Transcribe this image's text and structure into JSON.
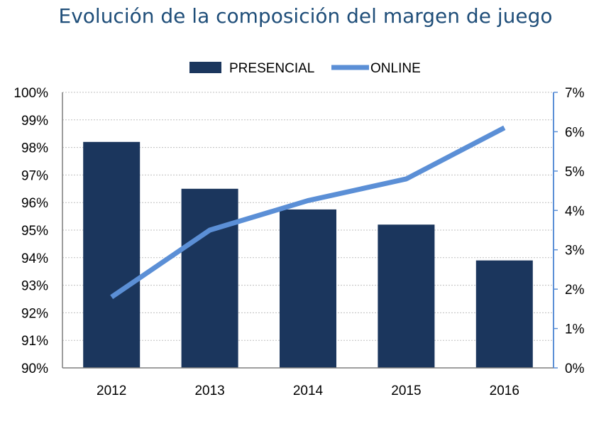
{
  "chart_data": {
    "type": "bar+line",
    "title": "Evolución de la composición del margen de juego",
    "categories": [
      "2012",
      "2013",
      "2014",
      "2015",
      "2016"
    ],
    "series": [
      {
        "name": "PRESENCIAL",
        "type": "bar",
        "axis": "left",
        "values": [
          98.2,
          96.5,
          95.75,
          95.2,
          93.9
        ]
      },
      {
        "name": "ONLINE",
        "type": "line",
        "axis": "right",
        "values": [
          1.8,
          3.5,
          4.25,
          4.8,
          6.1
        ]
      }
    ],
    "y_left": {
      "min": 90,
      "max": 100,
      "ticks": [
        "90%",
        "91%",
        "92%",
        "93%",
        "94%",
        "95%",
        "96%",
        "97%",
        "98%",
        "99%",
        "100%"
      ]
    },
    "y_right": {
      "min": 0,
      "max": 7,
      "ticks": [
        "0%",
        "1%",
        "2%",
        "3%",
        "4%",
        "5%",
        "6%",
        "7%"
      ]
    },
    "grid": true,
    "legend": "top-center",
    "colors": {
      "bar": "#1b365d",
      "line": "#5b8fd6",
      "title": "#1f4e79",
      "right_axis": "#5b8fd6"
    }
  }
}
